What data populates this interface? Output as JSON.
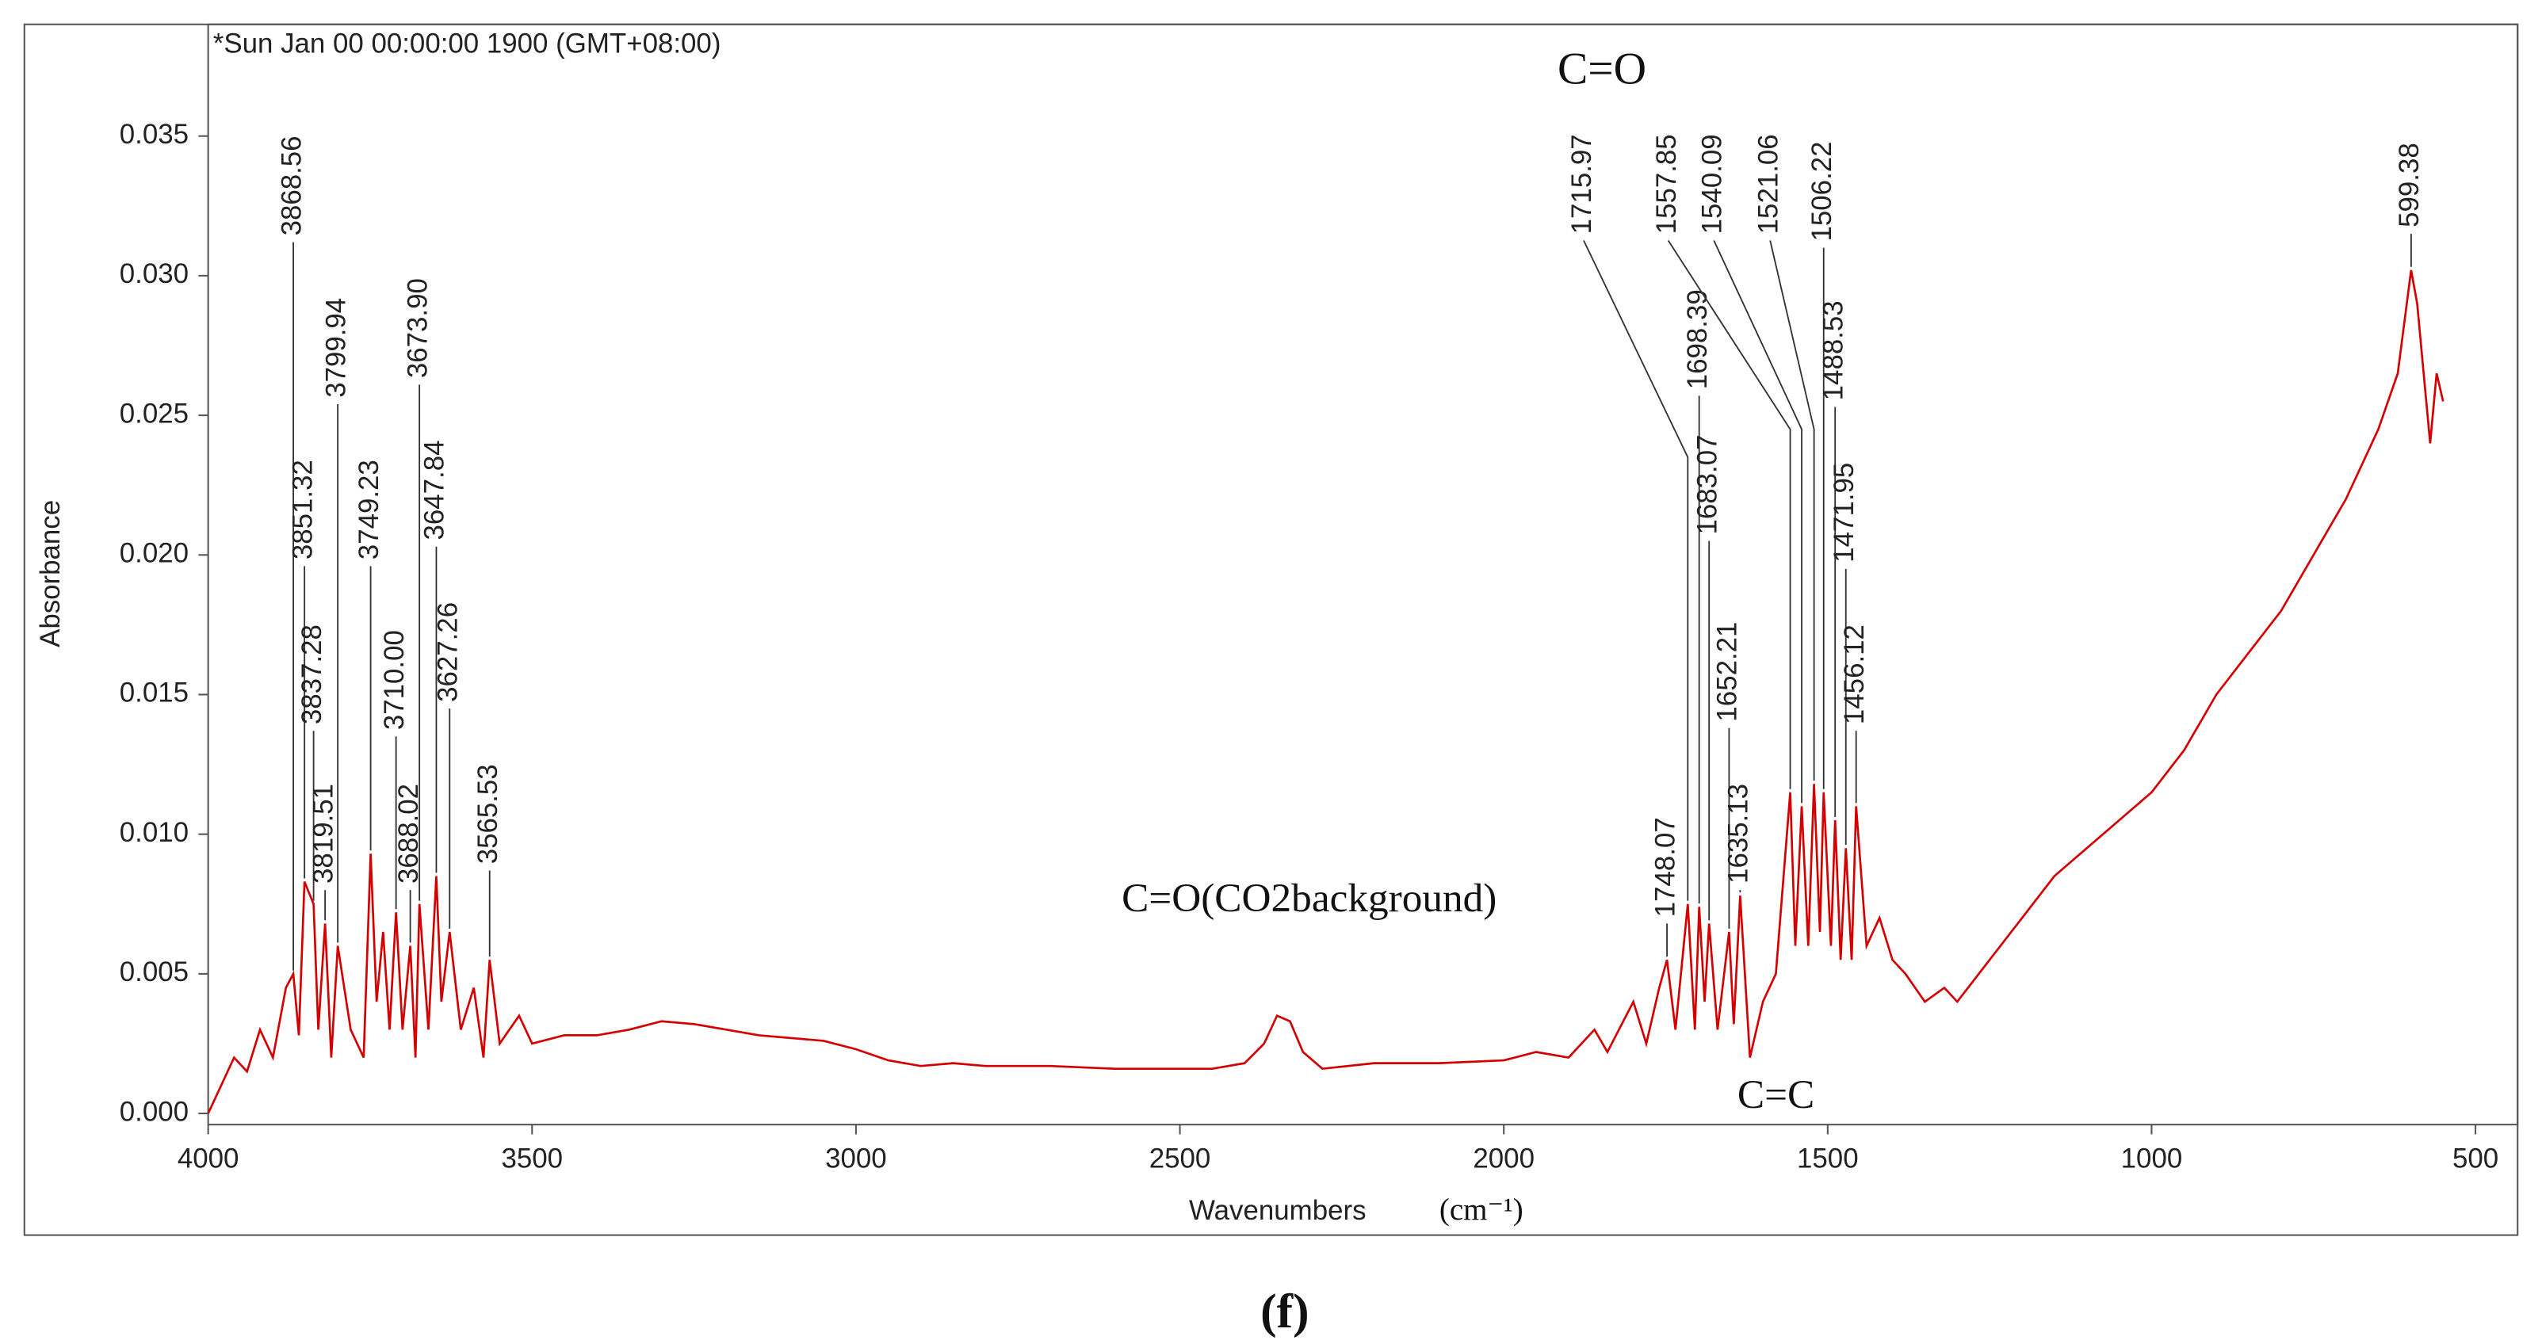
{
  "chart_data": {
    "type": "line",
    "title": "*Sun Jan 00 00:00:00 1900 (GMT+08:00)",
    "caption": "(f)",
    "x_label": "Wavenumbers",
    "x_unit": "(cm⁻¹)",
    "y_label": "Absorbance",
    "xlim": [
      4000,
      435
    ],
    "ylim": [
      -0.0004,
      0.039
    ],
    "xticks": [
      4000,
      3500,
      3000,
      2500,
      2000,
      1500,
      1000,
      500
    ],
    "yticks": [
      {
        "value": 0,
        "label": "0.000"
      },
      {
        "value": 0.005,
        "label": "0.005"
      },
      {
        "value": 0.01,
        "label": "0.010"
      },
      {
        "value": 0.015,
        "label": "0.015"
      },
      {
        "value": 0.02,
        "label": "0.020"
      },
      {
        "value": 0.025,
        "label": "0.025"
      },
      {
        "value": 0.03,
        "label": "0.030"
      },
      {
        "value": 0.035,
        "label": "0.035"
      }
    ],
    "color": "#d40000",
    "x": [
      4000,
      3980,
      3960,
      3940,
      3920,
      3900,
      3880,
      3868.56,
      3860,
      3851.32,
      3837.28,
      3830,
      3819.51,
      3810,
      3799.94,
      3780,
      3760,
      3749.23,
      3740,
      3730,
      3720,
      3710.0,
      3700,
      3688.02,
      3680,
      3673.9,
      3660,
      3647.84,
      3640,
      3627.26,
      3610,
      3590,
      3575,
      3565.53,
      3550,
      3520,
      3500,
      3450,
      3400,
      3350,
      3300,
      3250,
      3200,
      3150,
      3100,
      3050,
      3000,
      2950,
      2900,
      2850,
      2800,
      2700,
      2600,
      2500,
      2450,
      2400,
      2370,
      2350,
      2330,
      2310,
      2280,
      2200,
      2100,
      2000,
      1950,
      1900,
      1860,
      1840,
      1800,
      1780,
      1760,
      1748.07,
      1735,
      1715.97,
      1705,
      1698.39,
      1690,
      1683.07,
      1670,
      1652.21,
      1645,
      1635.13,
      1620,
      1600,
      1580,
      1557.85,
      1550,
      1540.09,
      1530,
      1521.06,
      1512,
      1506.22,
      1495,
      1488.53,
      1480,
      1471.95,
      1463,
      1456.12,
      1440,
      1420,
      1400,
      1380,
      1350,
      1320,
      1300,
      1250,
      1200,
      1150,
      1100,
      1050,
      1000,
      950,
      900,
      850,
      800,
      750,
      700,
      650,
      620,
      599.38,
      590,
      580,
      570,
      560,
      550
    ],
    "values": [
      0.0,
      0.001,
      0.002,
      0.0015,
      0.003,
      0.002,
      0.0045,
      0.005,
      0.0028,
      0.0083,
      0.0075,
      0.003,
      0.0068,
      0.002,
      0.006,
      0.003,
      0.002,
      0.0093,
      0.004,
      0.0065,
      0.003,
      0.0072,
      0.003,
      0.006,
      0.002,
      0.0075,
      0.003,
      0.0085,
      0.004,
      0.0065,
      0.003,
      0.0045,
      0.002,
      0.0055,
      0.0025,
      0.0035,
      0.0025,
      0.0028,
      0.0028,
      0.003,
      0.0033,
      0.0032,
      0.003,
      0.0028,
      0.0027,
      0.0026,
      0.0023,
      0.0019,
      0.0017,
      0.0018,
      0.0017,
      0.0017,
      0.0016,
      0.0016,
      0.0016,
      0.0018,
      0.0025,
      0.0035,
      0.0033,
      0.0022,
      0.0016,
      0.0018,
      0.0018,
      0.0019,
      0.0022,
      0.002,
      0.003,
      0.0022,
      0.004,
      0.0025,
      0.0045,
      0.0055,
      0.003,
      0.0075,
      0.003,
      0.0074,
      0.004,
      0.0068,
      0.003,
      0.0065,
      0.0032,
      0.0078,
      0.002,
      0.004,
      0.005,
      0.0115,
      0.006,
      0.011,
      0.006,
      0.0118,
      0.0065,
      0.0115,
      0.006,
      0.0105,
      0.0055,
      0.0095,
      0.0055,
      0.011,
      0.006,
      0.007,
      0.0055,
      0.005,
      0.004,
      0.0045,
      0.004,
      0.0055,
      0.007,
      0.0085,
      0.0095,
      0.0105,
      0.0115,
      0.013,
      0.015,
      0.0165,
      0.018,
      0.02,
      0.022,
      0.0245,
      0.0265,
      0.0302,
      0.029,
      0.0265,
      0.024,
      0.0265,
      0.0255
    ],
    "peaks": [
      {
        "x": 3868.56,
        "y": 0.0312,
        "label": "3868.56"
      },
      {
        "x": 3851.32,
        "y": 0.0196,
        "label": "3851.32"
      },
      {
        "x": 3837.28,
        "y": 0.0137,
        "label": "3837.28"
      },
      {
        "x": 3819.51,
        "y": 0.008,
        "label": "3819.51"
      },
      {
        "x": 3799.94,
        "y": 0.0254,
        "label": "3799.94"
      },
      {
        "x": 3749.23,
        "y": 0.0196,
        "label": "3749.23"
      },
      {
        "x": 3710.0,
        "y": 0.0135,
        "label": "3710.00"
      },
      {
        "x": 3688.02,
        "y": 0.008,
        "label": "3688.02"
      },
      {
        "x": 3673.9,
        "y": 0.0261,
        "label": "3673.90"
      },
      {
        "x": 3647.84,
        "y": 0.0203,
        "label": "3647.84"
      },
      {
        "x": 3627.26,
        "y": 0.0145,
        "label": "3627.26"
      },
      {
        "x": 3565.53,
        "y": 0.0087,
        "label": "3565.53"
      },
      {
        "x": 1748.07,
        "y": 0.0068,
        "label": "1748.07"
      },
      {
        "x": 1715.97,
        "y": 0.0235,
        "label": "1715.97"
      },
      {
        "x": 1698.39,
        "y": 0.0257,
        "label": "1698.39"
      },
      {
        "x": 1683.07,
        "y": 0.0205,
        "label": "1683.07"
      },
      {
        "x": 1652.21,
        "y": 0.0138,
        "label": "1652.21"
      },
      {
        "x": 1635.13,
        "y": 0.008,
        "label": "1635.13"
      },
      {
        "x": 1557.85,
        "y": 0.0245,
        "label": "1557.85"
      },
      {
        "x": 1540.09,
        "y": 0.0245,
        "label": "1540.09"
      },
      {
        "x": 1521.06,
        "y": 0.0245,
        "label": "1521.06"
      },
      {
        "x": 1506.22,
        "y": 0.031,
        "label": "1506.22"
      },
      {
        "x": 1488.53,
        "y": 0.0253,
        "label": "1488.53"
      },
      {
        "x": 1471.95,
        "y": 0.0195,
        "label": "1471.95"
      },
      {
        "x": 1456.12,
        "y": 0.0137,
        "label": "1456.12"
      },
      {
        "x": 599.38,
        "y": 0.0315,
        "label": "599.38"
      }
    ],
    "annotations": [
      "C=O",
      "C=O(CO2background)",
      "C=C"
    ]
  }
}
